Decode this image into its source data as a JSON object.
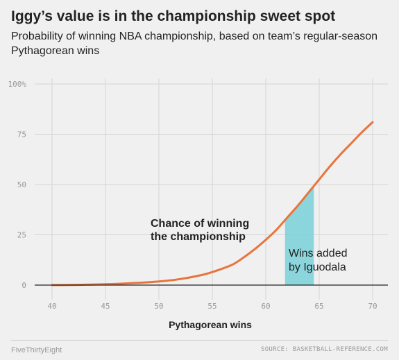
{
  "header": {
    "title": "Iggy’s value is in the championship sweet spot",
    "subtitle": "Probability of winning NBA championship, based on team’s regular-season Pythagorean wins"
  },
  "chart_data": {
    "type": "line",
    "title": "Iggy’s value is in the championship sweet spot",
    "subtitle": "Probability of winning NBA championship, based on team’s regular-season Pythagorean wins",
    "xlabel": "Pythagorean wins",
    "ylabel": "",
    "xlim": [
      40,
      70
    ],
    "ylim": [
      0,
      100
    ],
    "x_ticks": [
      "40",
      "45",
      "50",
      "55",
      "60",
      "65",
      "70"
    ],
    "y_ticks": [
      "0",
      "25",
      "50",
      "75",
      "100%"
    ],
    "grid": true,
    "series": [
      {
        "x": [
          40,
          42,
          44,
          46,
          48,
          50,
          52,
          54,
          55,
          56,
          57,
          58,
          59,
          60,
          61,
          62,
          63,
          64,
          65,
          66,
          67,
          68,
          69,
          70
        ],
        "y": [
          0,
          0.1,
          0.3,
          0.6,
          1.1,
          1.8,
          3,
          5,
          6.5,
          8.3,
          10.5,
          14,
          18,
          22.5,
          27.5,
          33.5,
          39.5,
          46,
          52.5,
          59,
          65,
          70.5,
          76,
          81
        ],
        "color": "#e8743b"
      }
    ],
    "highlight_band": {
      "x_start": 61.8,
      "x_end": 64.5,
      "label": "Wins added by Iguodala",
      "color": "#79d1d8"
    },
    "annotations": [
      {
        "text": "Chance of winning the championship"
      },
      {
        "text": "Wins added by Iguodala"
      }
    ]
  },
  "annotations": {
    "main_line1": "Chance of winning",
    "main_line2": "the championship",
    "wins_line1": "Wins added",
    "wins_line2": "by Iguodala"
  },
  "footer": {
    "brand": "FiveThirtyEight",
    "source": "SOURCE: BASKETBALL-REFERENCE.COM"
  }
}
